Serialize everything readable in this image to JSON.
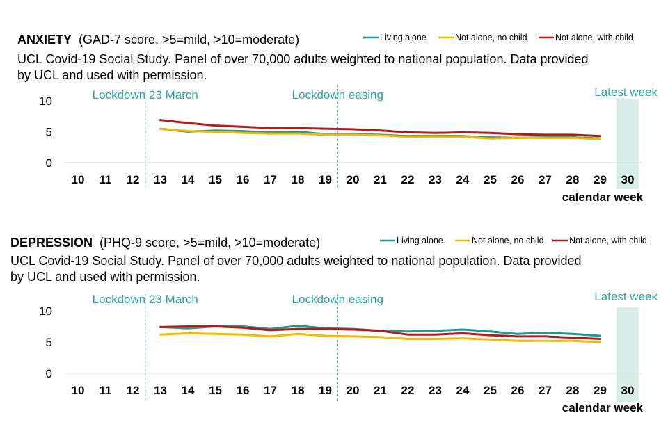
{
  "colors": {
    "living_alone": "#1a9c94",
    "not_alone_no_child": "#f5b800",
    "not_alone_with_child": "#b31b1b",
    "annotation": "#2aa79b",
    "latest_week_fill": "#d8efe9"
  },
  "chart_data": [
    {
      "type": "line",
      "title": "ANXIETY",
      "title_note": "(GAD-7 score, >5=mild, >10=moderate)",
      "subtitle_line1": "UCL Covid-19 Social Study. Panel of over 70,000 adults weighted to national population.  Data provided",
      "subtitle_line2": "by UCL and used with permission.",
      "xlabel": "calendar week",
      "categories": [
        "10",
        "11",
        "12",
        "13",
        "14",
        "15",
        "16",
        "17",
        "18",
        "19",
        "20",
        "21",
        "22",
        "23",
        "24",
        "25",
        "26",
        "27",
        "28",
        "29",
        "30"
      ],
      "x_start": 10,
      "ylim": [
        0,
        10
      ],
      "yticks": [
        "0",
        "5",
        "10"
      ],
      "annotations": {
        "lockdown": "Lockdown 23 March",
        "easing": "Lockdown easing",
        "latest": "Latest week"
      },
      "series": [
        {
          "name": "Living alone",
          "key": "living_alone",
          "points": [
            [
              13,
              5.5
            ],
            [
              14,
              5.0
            ],
            [
              15,
              5.2
            ],
            [
              16,
              5.1
            ],
            [
              17,
              4.9
            ],
            [
              18,
              5.0
            ],
            [
              19,
              4.6
            ],
            [
              20,
              4.6
            ],
            [
              21,
              4.5
            ],
            [
              22,
              4.3
            ],
            [
              23,
              4.3
            ],
            [
              24,
              4.3
            ],
            [
              25,
              4.1
            ],
            [
              26,
              4.0
            ],
            [
              27,
              4.1
            ],
            [
              28,
              4.1
            ],
            [
              29,
              3.9
            ]
          ]
        },
        {
          "name": "Not alone, no child",
          "key": "not_alone_no_child",
          "points": [
            [
              13,
              5.5
            ],
            [
              14,
              5.1
            ],
            [
              15,
              5.0
            ],
            [
              16,
              4.8
            ],
            [
              17,
              4.7
            ],
            [
              18,
              4.7
            ],
            [
              19,
              4.5
            ],
            [
              20,
              4.5
            ],
            [
              21,
              4.4
            ],
            [
              22,
              4.2
            ],
            [
              23,
              4.2
            ],
            [
              24,
              4.2
            ],
            [
              25,
              3.9
            ],
            [
              26,
              4.0
            ],
            [
              27,
              4.0
            ],
            [
              28,
              4.0
            ],
            [
              29,
              3.8
            ]
          ]
        },
        {
          "name": "Not alone, with child",
          "key": "not_alone_with_child",
          "points": [
            [
              13,
              6.9
            ],
            [
              14,
              6.4
            ],
            [
              15,
              6.0
            ],
            [
              16,
              5.8
            ],
            [
              17,
              5.6
            ],
            [
              18,
              5.6
            ],
            [
              19,
              5.5
            ],
            [
              20,
              5.4
            ],
            [
              21,
              5.2
            ],
            [
              22,
              4.9
            ],
            [
              23,
              4.8
            ],
            [
              24,
              4.9
            ],
            [
              25,
              4.8
            ],
            [
              26,
              4.6
            ],
            [
              27,
              4.5
            ],
            [
              28,
              4.5
            ],
            [
              29,
              4.3
            ]
          ]
        }
      ]
    },
    {
      "type": "line",
      "title": "DEPRESSION",
      "title_note": "(PHQ-9 score, >5=mild, >10=moderate)",
      "subtitle_line1": "UCL Covid-19 Social Study. Panel of over 70,000 adults weighted to national population.  Data provided",
      "subtitle_line2": "by UCL and used with permission.",
      "xlabel": "calendar week",
      "categories": [
        "10",
        "11",
        "12",
        "13",
        "14",
        "15",
        "16",
        "17",
        "18",
        "19",
        "20",
        "21",
        "22",
        "23",
        "24",
        "25",
        "26",
        "27",
        "28",
        "29",
        "30"
      ],
      "x_start": 10,
      "ylim": [
        0,
        10
      ],
      "yticks": [
        "0",
        "5",
        "10"
      ],
      "annotations": {
        "lockdown": "Lockdown 23 March",
        "easing": "Lockdown easing",
        "latest": "Latest week"
      },
      "series": [
        {
          "name": "Living alone",
          "key": "living_alone",
          "points": [
            [
              13,
              7.4
            ],
            [
              14,
              7.2
            ],
            [
              15,
              7.5
            ],
            [
              16,
              7.5
            ],
            [
              17,
              7.1
            ],
            [
              18,
              7.6
            ],
            [
              19,
              7.2
            ],
            [
              20,
              7.1
            ],
            [
              21,
              6.8
            ],
            [
              22,
              6.7
            ],
            [
              23,
              6.8
            ],
            [
              24,
              7.0
            ],
            [
              25,
              6.7
            ],
            [
              26,
              6.3
            ],
            [
              27,
              6.5
            ],
            [
              28,
              6.3
            ],
            [
              29,
              6.0
            ]
          ]
        },
        {
          "name": "Not alone, no child",
          "key": "not_alone_no_child",
          "points": [
            [
              13,
              6.2
            ],
            [
              14,
              6.4
            ],
            [
              15,
              6.3
            ],
            [
              16,
              6.2
            ],
            [
              17,
              5.9
            ],
            [
              18,
              6.3
            ],
            [
              19,
              6.0
            ],
            [
              20,
              5.9
            ],
            [
              21,
              5.8
            ],
            [
              22,
              5.5
            ],
            [
              23,
              5.5
            ],
            [
              24,
              5.6
            ],
            [
              25,
              5.4
            ],
            [
              26,
              5.2
            ],
            [
              27,
              5.2
            ],
            [
              28,
              5.2
            ],
            [
              29,
              5.0
            ]
          ]
        },
        {
          "name": "Not alone, with child",
          "key": "not_alone_with_child",
          "points": [
            [
              13,
              7.4
            ],
            [
              14,
              7.5
            ],
            [
              15,
              7.5
            ],
            [
              16,
              7.3
            ],
            [
              17,
              6.9
            ],
            [
              18,
              7.1
            ],
            [
              19,
              7.1
            ],
            [
              20,
              7.0
            ],
            [
              21,
              6.8
            ],
            [
              22,
              6.2
            ],
            [
              23,
              6.2
            ],
            [
              24,
              6.4
            ],
            [
              25,
              6.1
            ],
            [
              26,
              5.9
            ],
            [
              27,
              5.9
            ],
            [
              28,
              5.7
            ],
            [
              29,
              5.5
            ]
          ]
        }
      ]
    }
  ]
}
